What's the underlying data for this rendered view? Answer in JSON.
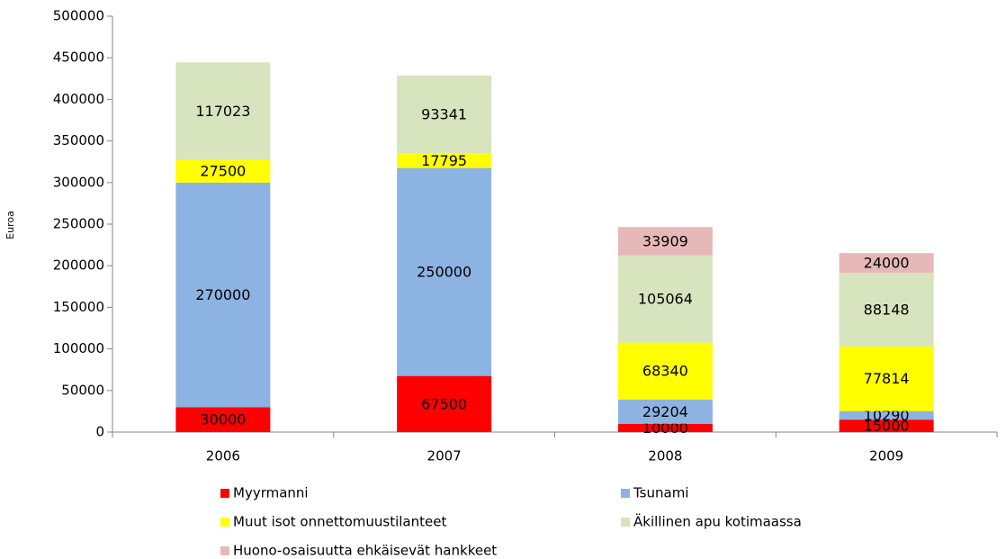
{
  "chart_data": {
    "type": "stacked_bar",
    "y_label": "Euroa",
    "categories": [
      "2006",
      "2007",
      "2008",
      "2009"
    ],
    "series": [
      {
        "name": "Myyrmanni",
        "color": "#ff0000",
        "values": [
          30000,
          67500,
          10000,
          15000
        ]
      },
      {
        "name": "Tsunami",
        "color": "#8db3e2",
        "values": [
          270000,
          250000,
          29204,
          10290
        ]
      },
      {
        "name": "Muut isot onnettomuustilanteet",
        "color": "#ffff00",
        "values": [
          27500,
          17795,
          68340,
          77814
        ]
      },
      {
        "name": "Äkillinen apu kotimaassa",
        "color": "#d7e4bd",
        "values": [
          117023,
          93341,
          105064,
          88148
        ]
      },
      {
        "name": "Huono-osaisuutta ehkäisevät hankkeet",
        "color": "#e6b9b8",
        "values": [
          null,
          null,
          33909,
          24000
        ]
      }
    ],
    "ylim": [
      0,
      500000
    ],
    "yticks": [
      0,
      50000,
      100000,
      150000,
      200000,
      250000,
      300000,
      350000,
      400000,
      450000,
      500000
    ],
    "grid": false,
    "legend": "bottom"
  }
}
